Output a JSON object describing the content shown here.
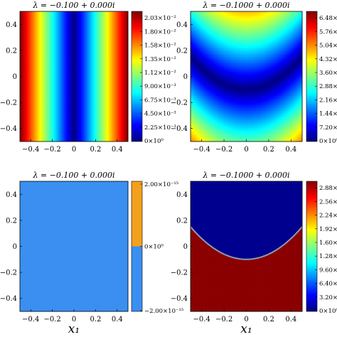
{
  "chart_data": [
    {
      "type": "heatmap",
      "title": "λ = −0.100 + 0.000i",
      "x_ticks": [
        "−0.4",
        "−0.2",
        "0",
        "0.2",
        "0.4"
      ],
      "y_ticks": [
        "0.4",
        "0.2",
        "0",
        "−0.2",
        "−0.4"
      ],
      "xlim": [
        -0.5,
        0.5
      ],
      "ylim": [
        -0.5,
        0.5
      ],
      "field": "|x1|",
      "colormap": "jet",
      "colorbar_ticks": [
        "2.03×10⁻²",
        "1.80×10⁻²",
        "1.58×10⁻²",
        "1.35×10⁻²",
        "1.12×10⁻²",
        "9.00×10⁻³",
        "6.75×10⁻³",
        "4.50×10⁻³",
        "2.25×10⁻³",
        "0×10⁰"
      ],
      "colorbar_range": [
        0,
        0.0225
      ]
    },
    {
      "type": "heatmap",
      "title": "λ = −0.1000 + 0.000i",
      "x_ticks": [
        "−0.4",
        "−0.2",
        "0",
        "0.2",
        "0.4"
      ],
      "y_ticks": [
        "0.4",
        "0.2",
        "0",
        "−0.2",
        "−0.4"
      ],
      "xlim": [
        -0.5,
        0.5
      ],
      "ylim": [
        -0.5,
        0.5
      ],
      "field": "parabolic band y = x² − 0.1",
      "colormap": "jet",
      "colorbar_ticks": [
        "6.48×10",
        "5.76×10",
        "5.04×10",
        "4.32×10",
        "3.60×10",
        "2.88×10",
        "2.16×10",
        "1.44×10",
        "7.20×10",
        "0×10⁰"
      ],
      "colorbar_range": [
        0,
        7.2
      ]
    },
    {
      "type": "heatmap",
      "title": "λ = −0.100 + 0.000i",
      "x_ticks": [
        "−0.4",
        "−0.2",
        "0",
        "0.2",
        "0.4"
      ],
      "y_ticks": [
        "0.4",
        "0.2",
        "0",
        "−0.2",
        "−0.4"
      ],
      "xlim": [
        -0.5,
        0.5
      ],
      "ylim": [
        -0.5,
        0.5
      ],
      "field": "constant 0",
      "colormap": "two-level",
      "colorbar_colors": [
        "#3a8ff0",
        "#f3a11c"
      ],
      "colorbar_ticks": [
        "2.00×10⁻¹⁵",
        "0×10⁰",
        "−2.00×10⁻¹⁵"
      ],
      "colorbar_range": [
        -2e-15,
        2e-15
      ]
    },
    {
      "type": "heatmap",
      "title": "λ = −0.1000 + 0.000i",
      "x_ticks": [
        "−0.4",
        "−0.2",
        "0",
        "0.2",
        "0.4"
      ],
      "y_ticks": [
        "0.4",
        "0.2",
        "0",
        "−0.2",
        "−0.4"
      ],
      "xlim": [
        -0.5,
        0.5
      ],
      "ylim": [
        -0.5,
        0.5
      ],
      "field": "sign region, boundary y = x² − 0.1",
      "colormap": "jet",
      "colorbar_ticks": [
        "2.88×10",
        "2.56×10",
        "2.24×10",
        "1.92×10",
        "1.60×10",
        "1.28×10",
        "9.60×10",
        "6.40×10",
        "3.20×10",
        "0×10⁰"
      ],
      "colorbar_range": [
        0,
        3.2
      ]
    }
  ],
  "xlabel": "x₁",
  "colors": {
    "jet": [
      "#00007f",
      "#0000ff",
      "#007fff",
      "#00ffff",
      "#7fff7f",
      "#ffff00",
      "#ff7f00",
      "#ff0000",
      "#7f0000"
    ],
    "uniform_panel": "#3a8ff0"
  }
}
